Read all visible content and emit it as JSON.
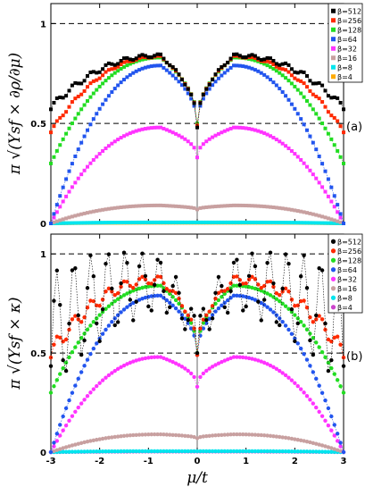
{
  "chart_data": [
    {
      "type": "scatter",
      "panel_label": "(a)",
      "ylabel": "π √(Υsf × ∂ρ/∂μ)",
      "marker": "square",
      "xlim": [
        -3,
        3
      ],
      "ylim": [
        0,
        1.1
      ],
      "xticks": [
        "-3",
        "-2",
        "-1",
        "0",
        "1",
        "2",
        "3"
      ],
      "yticks": [
        "0",
        "0.5",
        "1"
      ],
      "reference_lines": [
        1.0,
        0.5
      ],
      "legend": {
        "placement": "top-right"
      },
      "series": [
        {
          "name": "β=512",
          "color": "#000000",
          "peak": 0.84,
          "cusp": 0.48,
          "edge": 0.58,
          "noise": 0.012
        },
        {
          "name": "β=256",
          "color": "#ff2a00",
          "peak": 0.835,
          "cusp": 0.49,
          "edge": 0.46,
          "noise": 0.006
        },
        {
          "name": "β=128",
          "color": "#22dd22",
          "peak": 0.83,
          "cusp": 0.5,
          "edge": 0.3,
          "noise": 0.0
        },
        {
          "name": "β=64",
          "color": "#2255ee",
          "peak": 0.79,
          "cusp": 0.49,
          "edge": 0.0,
          "noise": 0.0
        },
        {
          "name": "β=32",
          "color": "#ff33ff",
          "peak": 0.48,
          "cusp": 0.33,
          "edge": 0.0,
          "noise": 0.0
        },
        {
          "name": "β=16",
          "color": "#c8a0a0",
          "peak": 0.09,
          "cusp": 0.07,
          "edge": 0.0,
          "noise": 0.0
        },
        {
          "name": "β=8",
          "color": "#00e5ee",
          "peak": 0.005,
          "cusp": 0.005,
          "edge": 0.0,
          "noise": 0.0
        },
        {
          "name": "β=4",
          "color": "#ffaa00",
          "peak": 0.003,
          "cusp": 0.003,
          "edge": 0.0,
          "noise": 0.0
        }
      ]
    },
    {
      "type": "scatter",
      "panel_label": "(b)",
      "ylabel": "π √(Υsf × κ)",
      "marker": "circle",
      "xlim": [
        -3,
        3
      ],
      "ylim": [
        0,
        1.1
      ],
      "xticks": [
        "-3",
        "-2",
        "-1",
        "0",
        "1",
        "2",
        "3"
      ],
      "yticks": [
        "0",
        "0.5",
        "1"
      ],
      "xlabel": "μ/t",
      "reference_lines": [
        1.0,
        0.5
      ],
      "legend": {
        "placement": "top-right"
      },
      "series": [
        {
          "name": "β=512",
          "color": "#000000",
          "peak": 0.85,
          "cusp": 0.5,
          "edge": 0.6,
          "noise": 0.22
        },
        {
          "name": "β=256",
          "color": "#ff2a00",
          "peak": 0.87,
          "cusp": 0.49,
          "edge": 0.5,
          "noise": 0.03
        },
        {
          "name": "β=128",
          "color": "#22dd22",
          "peak": 0.84,
          "cusp": 0.5,
          "edge": 0.3,
          "noise": 0.0
        },
        {
          "name": "β=64",
          "color": "#2255ee",
          "peak": 0.79,
          "cusp": 0.49,
          "edge": 0.0,
          "noise": 0.0
        },
        {
          "name": "β=32",
          "color": "#ff33ff",
          "peak": 0.48,
          "cusp": 0.33,
          "edge": 0.0,
          "noise": 0.0
        },
        {
          "name": "β=16",
          "color": "#c8a0a0",
          "peak": 0.09,
          "cusp": 0.07,
          "edge": 0.0,
          "noise": 0.0
        },
        {
          "name": "β=8",
          "color": "#00e5ee",
          "peak": 0.005,
          "cusp": 0.005,
          "edge": 0.0,
          "noise": 0.0
        },
        {
          "name": "β=4",
          "color": "#cc44cc",
          "peak": 0.003,
          "cusp": 0.003,
          "edge": 0.0,
          "noise": 0.0
        }
      ]
    }
  ]
}
